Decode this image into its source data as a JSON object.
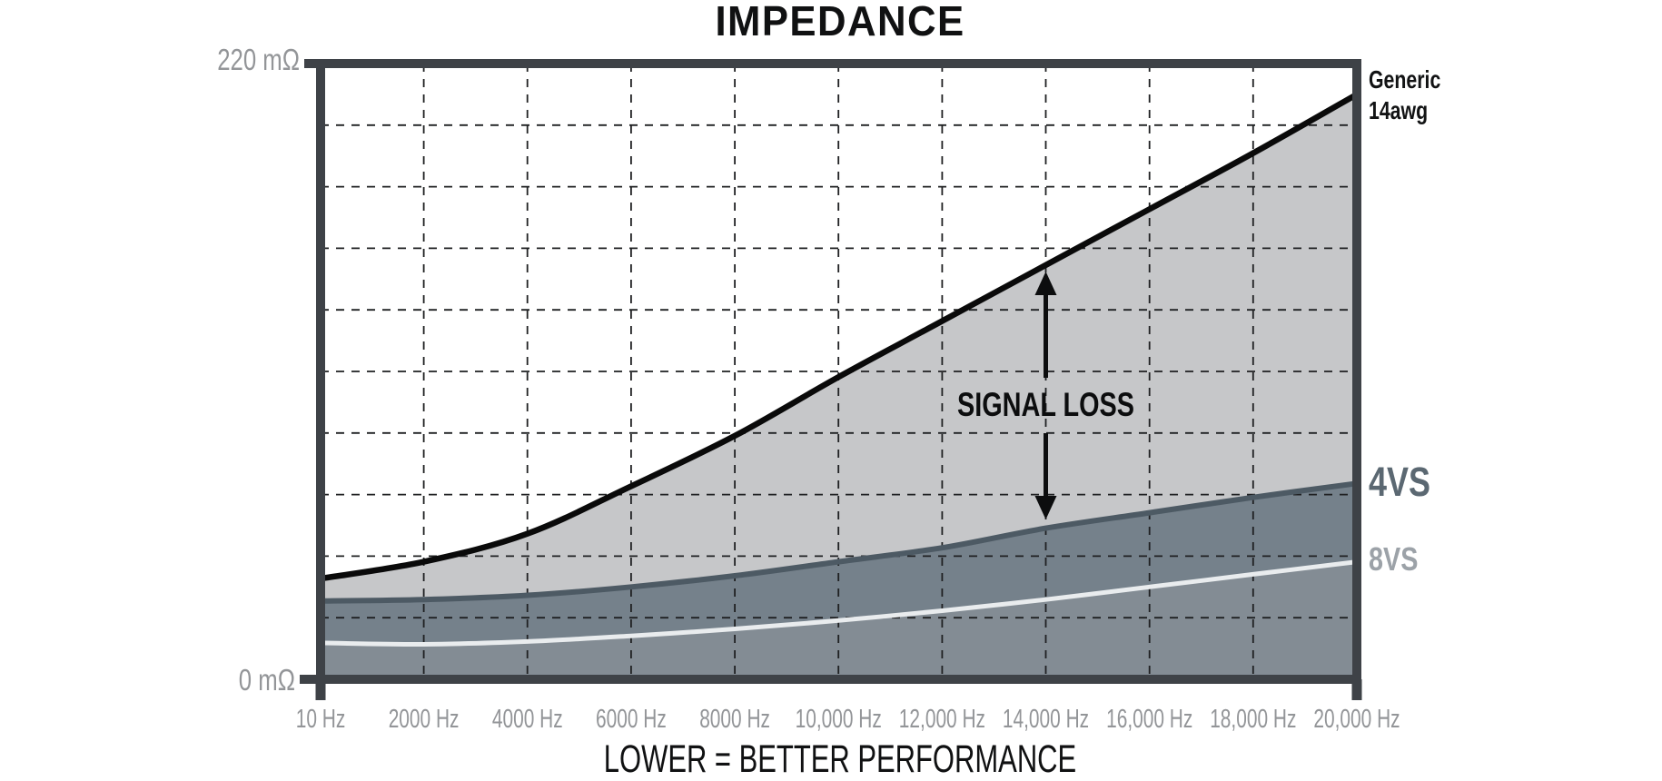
{
  "title": "IMPEDANCE",
  "footer": "LOWER = BETTER PERFORMANCE",
  "y_axis": {
    "top_label": "220 mΩ",
    "bottom_label": "0 mΩ"
  },
  "x_axis": {
    "labels": [
      "10 Hz",
      "2000 Hz",
      "4000 Hz",
      "6000 Hz",
      "8000 Hz",
      "10,000 Hz",
      "12,000 Hz",
      "14,000 Hz",
      "16,000 Hz",
      "18,000 Hz",
      "20,000 Hz"
    ]
  },
  "series_labels": {
    "generic_line1": "Generic",
    "generic_line2": "14awg",
    "vs4": "4VS",
    "vs8": "8VS"
  },
  "annotation": {
    "signal_loss": "SIGNAL LOSS"
  },
  "colors": {
    "background": "#ffffff",
    "frame": "#3e4247",
    "grid": "#1f2022",
    "axis_label_gray": "#939598",
    "generic_line": "#0a0a0a",
    "generic_fill": "#c6c7c9",
    "vs4_line": "#4d5a64",
    "vs4_fill": "#75818b",
    "vs4_label": "#5b6872",
    "vs8_line": "#e9ecee",
    "vs8_fill": "#838c94",
    "vs8_label": "#9ca2a8",
    "annotation_black": "#0c0d0e"
  },
  "chart_data": {
    "type": "area",
    "title": "IMPEDANCE",
    "subtitle": "LOWER = BETTER PERFORMANCE",
    "x_unit": "Hz",
    "y_unit": "mΩ",
    "xlim": [
      10,
      20000
    ],
    "ylim": [
      0,
      220
    ],
    "y_gridline_step": 22,
    "grid": true,
    "x": [
      10,
      2000,
      4000,
      6000,
      8000,
      10000,
      12000,
      14000,
      16000,
      18000,
      20000
    ],
    "series": [
      {
        "name": "Generic 14awg",
        "values": [
          36,
          42,
          52,
          69,
          87,
          108,
          128,
          148,
          168,
          188,
          209
        ],
        "line_color": "#0a0a0a",
        "fill_color": "#c6c7c9",
        "line_width": 6.5
      },
      {
        "name": "4VS",
        "values": [
          28,
          28.5,
          30,
          33,
          37,
          42,
          47,
          54,
          59.5,
          65,
          70
        ],
        "line_color": "#4d5a64",
        "fill_color": "#75818b",
        "line_width": 6
      },
      {
        "name": "8VS",
        "values": [
          13,
          12.5,
          13.5,
          15.5,
          18,
          21,
          24.5,
          28.5,
          33,
          37.5,
          42
        ],
        "line_color": "#e9ecee",
        "fill_color": "#838c94",
        "line_width": 5
      }
    ],
    "annotations": [
      {
        "text": "SIGNAL LOSS",
        "x": 14000,
        "meaning": "double arrow between Generic 14awg curve and 4VS curve"
      }
    ],
    "legend_position": "right-edge labels"
  }
}
